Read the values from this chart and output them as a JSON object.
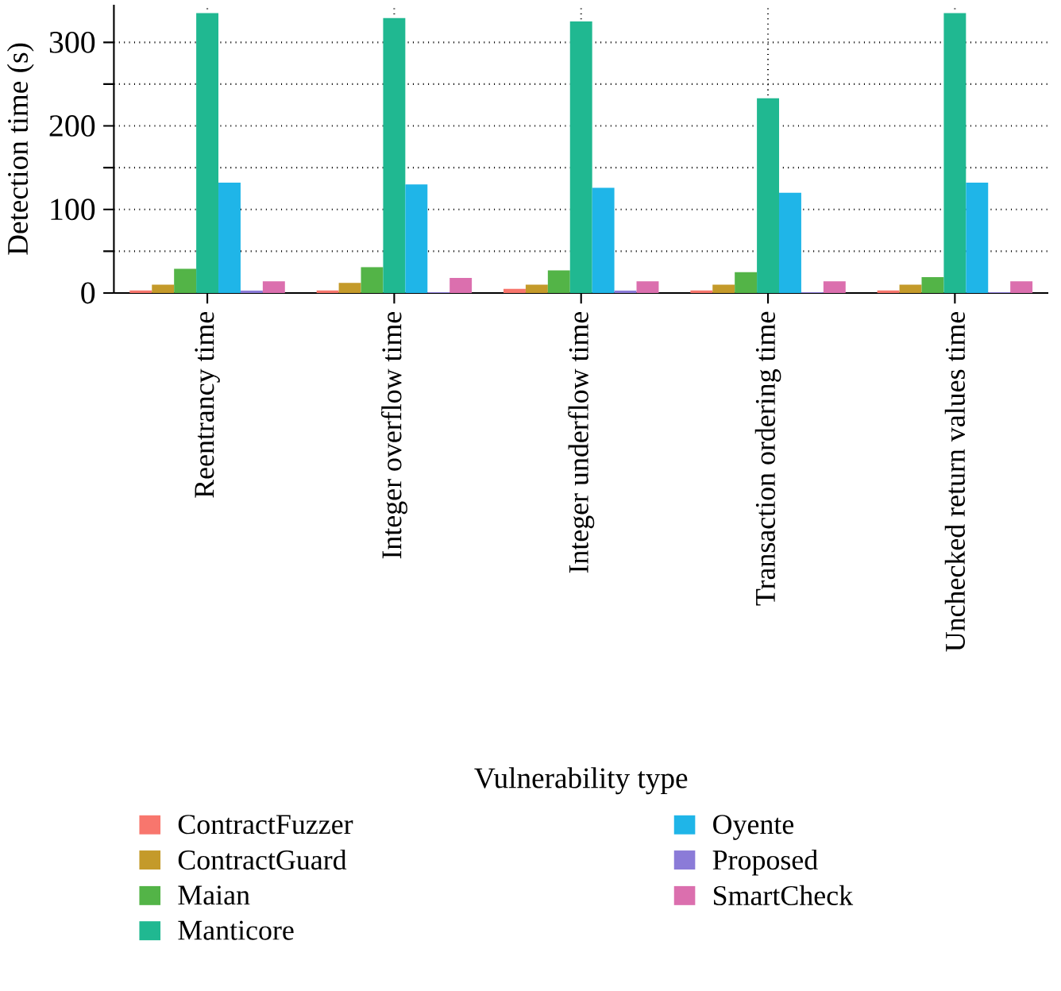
{
  "chart_data": {
    "type": "bar",
    "xlabel": "Vulnerability type",
    "ylabel": "Detection time (s)",
    "categories": [
      "Reentrancy time",
      "Integer overflow time",
      "Integer underflow time",
      "Transaction ordering time",
      "Unchecked return values time"
    ],
    "series": [
      {
        "name": "ContractFuzzer",
        "color": "#f8766d",
        "values": [
          3,
          3,
          5,
          3,
          3
        ]
      },
      {
        "name": "ContractGuard",
        "color": "#c49a2a",
        "values": [
          10,
          12,
          10,
          10,
          10
        ]
      },
      {
        "name": "Maian",
        "color": "#53b447",
        "values": [
          29,
          31,
          27,
          25,
          19
        ]
      },
      {
        "name": "Manticore",
        "color": "#20b891",
        "values": [
          335,
          329,
          325,
          233,
          335
        ]
      },
      {
        "name": "Oyente",
        "color": "#1fb5e8",
        "values": [
          132,
          130,
          126,
          120,
          132
        ]
      },
      {
        "name": "Proposed",
        "color": "#8b7bd8",
        "values": [
          3,
          1,
          3,
          1,
          1
        ]
      },
      {
        "name": "SmartCheck",
        "color": "#db6fae",
        "values": [
          14,
          18,
          14,
          14,
          14
        ]
      }
    ],
    "ylim": [
      0,
      345
    ],
    "yticks": [
      0,
      {
        "value": 50,
        "label": null
      },
      100,
      {
        "value": 150,
        "label": null
      },
      200,
      {
        "value": 250,
        "label": null
      },
      300
    ],
    "grid": true,
    "legend": "bottom"
  }
}
